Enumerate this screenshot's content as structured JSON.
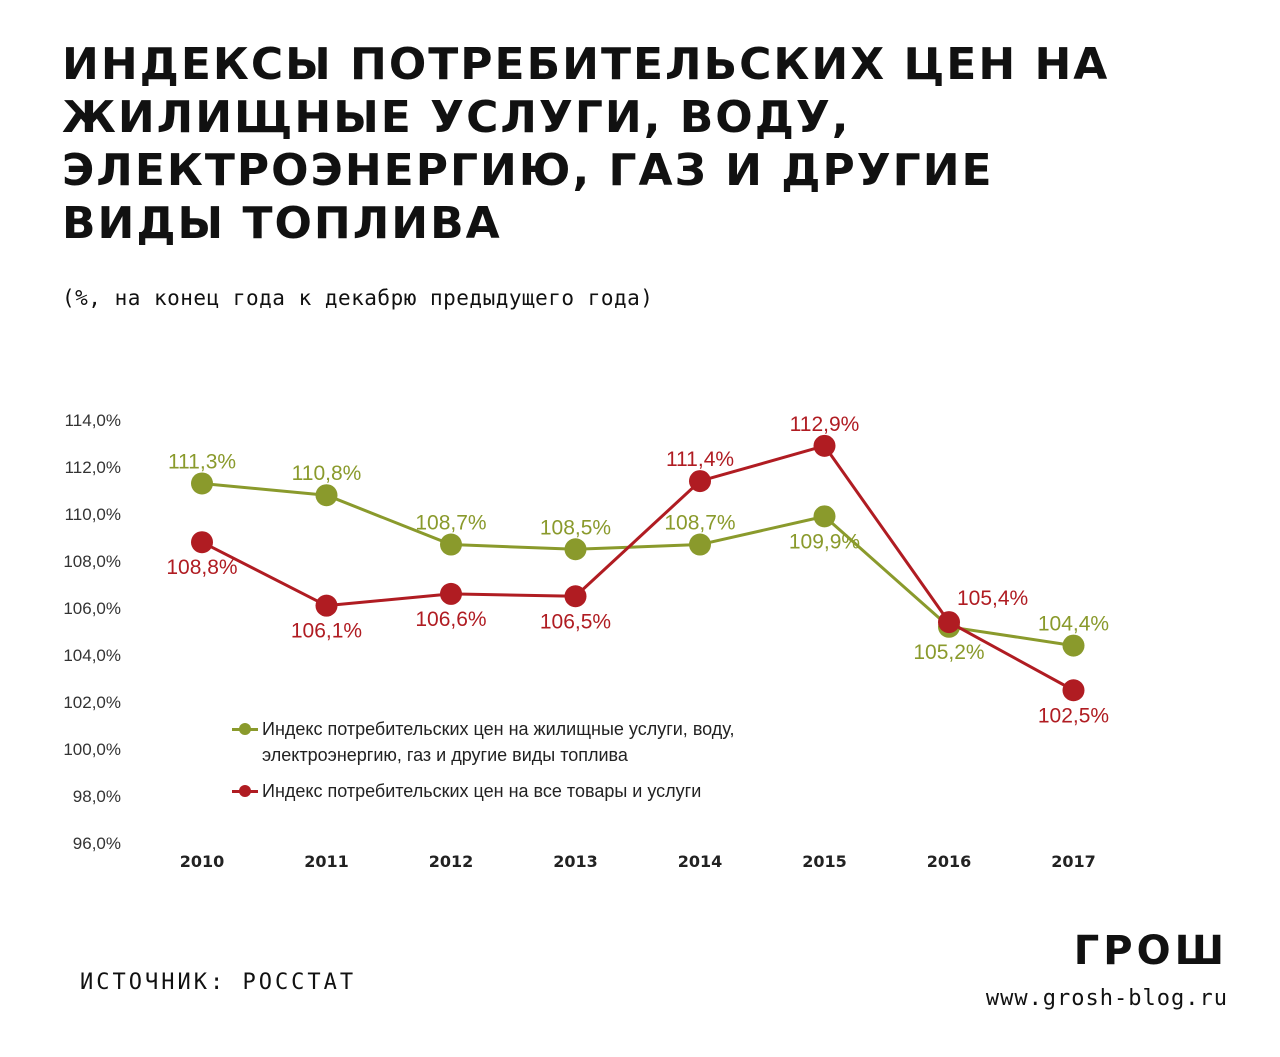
{
  "header": {
    "title": "ИНДЕКСЫ ПОТРЕБИТЕЛЬСКИХ ЦЕН НА ЖИЛИЩНЫЕ УСЛУГИ, ВОДУ, ЭЛЕКТРОЭНЕРГИЮ, ГАЗ И ДРУГИЕ ВИДЫ ТОПЛИВА",
    "subtitle": "(%, на конец года к декабрю предыдущего года)"
  },
  "footer": {
    "source": "ИСТОЧНИК: РОССТАТ",
    "logo": "ГРОШ",
    "site": "www.grosh-blog.ru"
  },
  "chart_data": {
    "type": "line",
    "x": [
      "2010",
      "2011",
      "2012",
      "2013",
      "2014",
      "2015",
      "2016",
      "2017"
    ],
    "ylim": [
      96,
      114
    ],
    "yticks": [
      114,
      112,
      110,
      108,
      106,
      104,
      102,
      100,
      98,
      96
    ],
    "ytick_labels": [
      "114,0%",
      "112,0%",
      "110,0%",
      "108,0%",
      "106,0%",
      "104,0%",
      "102,0%",
      "100,0%",
      "98,0%",
      "96,0%"
    ],
    "grid": false,
    "legend_position": "bottom-left inside plot",
    "series": [
      {
        "name": "Индекс потребительских цен на жилищные услуги, воду, электроэнергию, газ и другие виды топлива",
        "color": "#8a9a2c",
        "values": [
          111.3,
          110.8,
          108.7,
          108.5,
          108.7,
          109.9,
          105.2,
          104.4
        ],
        "labels": [
          "111,3%",
          "110,8%",
          "108,7%",
          "108,5%",
          "108,7%",
          "109,9%",
          "105,2%",
          "104,4%"
        ],
        "label_pos": [
          "above",
          "above",
          "above",
          "above",
          "above",
          "below",
          "below",
          "above"
        ]
      },
      {
        "name": "Индекс потребительских цен на все товары и услуги",
        "color": "#b01c22",
        "values": [
          108.8,
          106.1,
          106.6,
          106.5,
          111.4,
          112.9,
          105.4,
          102.5
        ],
        "labels": [
          "108,8%",
          "106,1%",
          "106,6%",
          "106,5%",
          "111,4%",
          "112,9%",
          "105,4%",
          "102,5%"
        ],
        "label_pos": [
          "below",
          "below",
          "below",
          "below",
          "above",
          "above",
          "above-right",
          "below"
        ]
      }
    ]
  }
}
